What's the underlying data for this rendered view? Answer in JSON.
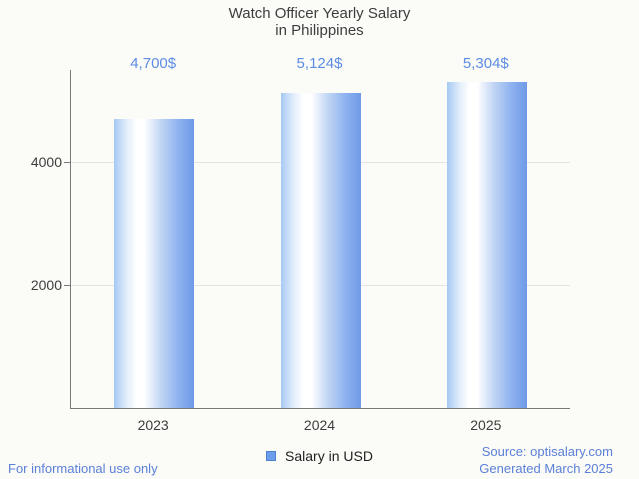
{
  "title": {
    "line1": "Watch Officer Yearly Salary",
    "line2": "in Philippines"
  },
  "chart_data": {
    "type": "bar",
    "title": "Watch Officer Yearly Salary in Philippines",
    "categories": [
      "2023",
      "2024",
      "2025"
    ],
    "series": [
      {
        "name": "Salary in USD",
        "values": [
          4700,
          5124,
          5304
        ],
        "labels": [
          "4,700$",
          "5,124$",
          "5,304$"
        ]
      }
    ],
    "xlabel": "",
    "ylabel": "",
    "ylim": [
      0,
      5500
    ],
    "yticks": [
      2000,
      4000
    ],
    "grid": true,
    "legend_position": "bottom"
  },
  "footer": {
    "left": "For informational use only",
    "source": "Source: optisalary.com",
    "generated": "Generated March 2025"
  },
  "colors": {
    "background": "#fbfbf7",
    "text": "#3d3d3d",
    "annotation": "#5c8ce4",
    "footer_blue": "#5b80d9",
    "axis": "#787878",
    "gridline": "#e4e4e4",
    "bar_light": "#a5c9f4",
    "bar_mid": "#ffffff",
    "bar_dark": "#6f9ae8",
    "legend_marker": "#6d9eeb",
    "legend_border": "#4f81cf"
  }
}
